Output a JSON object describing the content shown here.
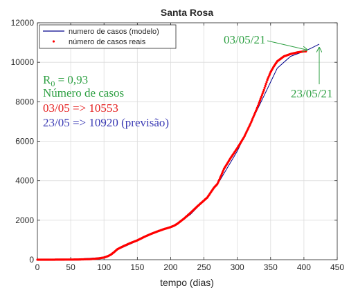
{
  "chart_data": {
    "type": "line",
    "title": "Santa Rosa",
    "xlabel": "tempo (dias)",
    "ylabel": "",
    "xlim": [
      0,
      450
    ],
    "ylim": [
      0,
      12000
    ],
    "xticks": [
      0,
      50,
      100,
      150,
      200,
      250,
      300,
      350,
      400,
      450
    ],
    "yticks": [
      0,
      2000,
      4000,
      6000,
      8000,
      10000,
      12000
    ],
    "grid": true,
    "legend_position": "top-center",
    "series": [
      {
        "name": "numero de casos (modelo)",
        "style": "line",
        "color": "#00008B",
        "x": [
          0,
          50,
          100,
          110,
          120,
          150,
          180,
          200,
          210,
          230,
          250,
          270,
          300,
          320,
          340,
          360,
          380,
          400,
          410,
          423
        ],
        "y": [
          0,
          10,
          120,
          250,
          500,
          950,
          1450,
          1650,
          1800,
          2300,
          3000,
          3800,
          5500,
          6900,
          8300,
          9700,
          10300,
          10553,
          10700,
          10920
        ]
      },
      {
        "name": "número de casos reais",
        "style": "points",
        "color": "#FF0000",
        "x": [
          0,
          20,
          40,
          60,
          80,
          90,
          100,
          105,
          110,
          115,
          120,
          130,
          140,
          150,
          160,
          170,
          180,
          190,
          200,
          205,
          210,
          220,
          230,
          240,
          250,
          255,
          260,
          265,
          270,
          275,
          280,
          290,
          300,
          310,
          320,
          330,
          340,
          345,
          350,
          355,
          360,
          370,
          380,
          390,
          400,
          403
        ],
        "y": [
          0,
          0,
          5,
          10,
          30,
          60,
          110,
          170,
          250,
          380,
          530,
          700,
          850,
          980,
          1150,
          1300,
          1430,
          1550,
          1650,
          1720,
          1820,
          2080,
          2380,
          2700,
          3000,
          3150,
          3400,
          3650,
          3830,
          4200,
          4600,
          5150,
          5650,
          6200,
          6900,
          7700,
          8600,
          9100,
          9500,
          9800,
          10050,
          10300,
          10420,
          10500,
          10553,
          10553
        ]
      }
    ],
    "annotations": {
      "r0_label": "R",
      "r0_sub": "0",
      "r0_value": " = 0,93",
      "cases_heading": "Número de casos",
      "actual_line": "03/05 => 10553",
      "forecast_line": "23/05 => 10920 (previsão)",
      "arrow_label_actual": "03/05/21",
      "arrow_label_forecast": "23/05/21"
    },
    "colors": {
      "annotation_green": "#2EA043",
      "annotation_red": "#E51A1A",
      "annotation_blue": "#3A3AB4"
    }
  }
}
